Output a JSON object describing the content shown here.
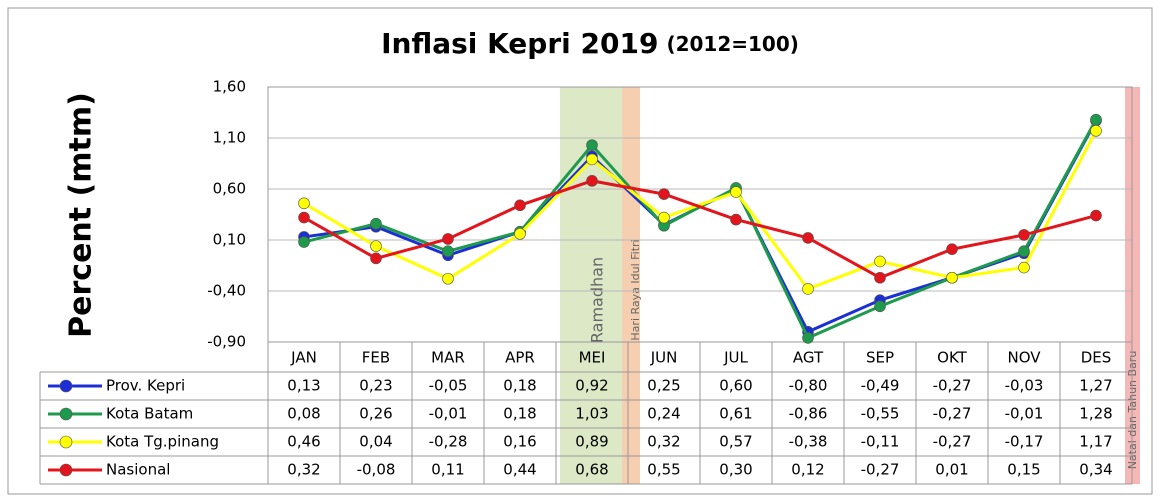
{
  "chart_data": {
    "type": "line",
    "title": "Inflasi Kepri 2019",
    "subtitle": "(2012=100)",
    "y_label": "Percent (mtm)",
    "categories": [
      "JAN",
      "FEB",
      "MAR",
      "APR",
      "MEI",
      "JUN",
      "JUL",
      "AGT",
      "SEP",
      "OKT",
      "NOV",
      "DES"
    ],
    "ylim": [
      -0.9,
      1.6
    ],
    "yticks": [
      {
        "value": -0.9,
        "label": "-0,90"
      },
      {
        "value": -0.4,
        "label": "-0,40"
      },
      {
        "value": 0.1,
        "label": "0,10"
      },
      {
        "value": 0.6,
        "label": "0,60"
      },
      {
        "value": 1.1,
        "label": "1,10"
      },
      {
        "value": 1.6,
        "label": "1,60"
      }
    ],
    "grid": true,
    "annotations": [
      {
        "label": "Ramadhan",
        "color": "#d7e4bd"
      },
      {
        "label": "Hari Raya Idul Fitri",
        "color": "#f5c7a3"
      },
      {
        "label": "Natal dan Tahun Baru",
        "color": "#f4aaaa"
      }
    ],
    "series": [
      {
        "name": "Prov. Kepri",
        "color": "#1c2fd6",
        "values": [
          0.13,
          0.23,
          -0.05,
          0.18,
          0.92,
          0.25,
          0.6,
          -0.8,
          -0.49,
          -0.27,
          -0.03,
          1.27
        ],
        "value_labels": [
          "0,13",
          "0,23",
          "-0,05",
          "0,18",
          "0,92",
          "0,25",
          "0,60",
          "-0,80",
          "-0,49",
          "-0,27",
          "-0,03",
          "1,27"
        ]
      },
      {
        "name": "Kota Batam",
        "color": "#1e9a4c",
        "values": [
          0.08,
          0.26,
          -0.01,
          0.18,
          1.03,
          0.24,
          0.61,
          -0.86,
          -0.55,
          -0.27,
          -0.01,
          1.28
        ],
        "value_labels": [
          "0,08",
          "0,26",
          "-0,01",
          "0,18",
          "1,03",
          "0,24",
          "0,61",
          "-0,86",
          "-0,55",
          "-0,27",
          "-0,01",
          "1,28"
        ]
      },
      {
        "name": "Kota Tg.pinang",
        "color": "#ffff00",
        "values": [
          0.46,
          0.04,
          -0.28,
          0.16,
          0.89,
          0.32,
          0.57,
          -0.38,
          -0.11,
          -0.27,
          -0.17,
          1.17
        ],
        "value_labels": [
          "0,46",
          "0,04",
          "-0,28",
          "0,16",
          "0,89",
          "0,32",
          "0,57",
          "-0,38",
          "-0,11",
          "-0,27",
          "-0,17",
          "1,17"
        ]
      },
      {
        "name": "Nasional",
        "color": "#e3141b",
        "values": [
          0.32,
          -0.08,
          0.11,
          0.44,
          0.68,
          0.55,
          0.3,
          0.12,
          -0.27,
          0.01,
          0.15,
          0.34
        ],
        "value_labels": [
          "0,32",
          "-0,08",
          "0,11",
          "0,44",
          "0,68",
          "0,55",
          "0,30",
          "0,12",
          "-0,27",
          "0,01",
          "0,15",
          "0,34"
        ]
      }
    ]
  }
}
